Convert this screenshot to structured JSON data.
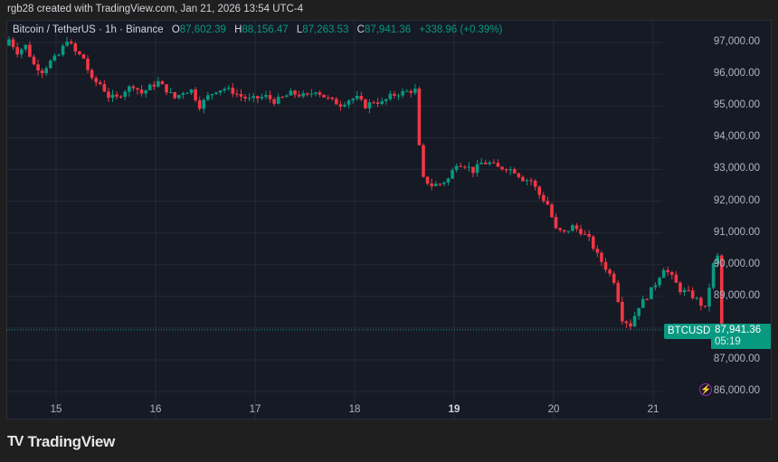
{
  "credit": "rgb28 created with TradingView.com, Jan 21, 2026 13:54 UTC-4",
  "legend": {
    "symbol": "Bitcoin / TetherUS · 1h · Binance",
    "open_label": "O",
    "open": "87,602.39",
    "high_label": "H",
    "high": "88,156.47",
    "low_label": "L",
    "low": "87,263.53",
    "close_label": "C",
    "close": "87,941.36",
    "change": "+338.96 (+0.39%)"
  },
  "price_tag": {
    "symbol": "BTCUSDT",
    "price": "87,941.36",
    "countdown": "05:19"
  },
  "branding": {
    "logo_mark": "TV",
    "logo_text": "TradingView"
  },
  "colors": {
    "up": "#089981",
    "down": "#f23645",
    "background": "#161a25",
    "grid": "#242935",
    "page": "#1f1f1f"
  },
  "chart_data": {
    "type": "candlestick",
    "title": "Bitcoin / TetherUS · 1h · Binance",
    "interval": "1h",
    "yaxis_ticks": [
      "97,000.00",
      "96,000.00",
      "95,000.00",
      "94,000.00",
      "93,000.00",
      "92,000.00",
      "91,000.00",
      "90,000.00",
      "89,000.00",
      "88,000.00",
      "87,000.00",
      "86,000.00"
    ],
    "ylim": [
      85800,
      97600
    ],
    "xaxis_ticks": [
      "15",
      "16",
      "17",
      "18",
      "19",
      "20",
      "21"
    ],
    "last_price": 87941.36,
    "anchors_close": [
      [
        0,
        97100
      ],
      [
        2,
        96700
      ],
      [
        4,
        96900
      ],
      [
        6,
        96300
      ],
      [
        8,
        96100
      ],
      [
        10,
        96400
      ],
      [
        12,
        96600
      ],
      [
        14,
        97100
      ],
      [
        16,
        96700
      ],
      [
        18,
        96500
      ],
      [
        20,
        95800
      ],
      [
        22,
        95700
      ],
      [
        24,
        95300
      ],
      [
        26,
        95250
      ],
      [
        28,
        95500
      ],
      [
        30,
        95650
      ],
      [
        32,
        95400
      ],
      [
        34,
        95600
      ],
      [
        36,
        95750
      ],
      [
        38,
        95500
      ],
      [
        40,
        95250
      ],
      [
        42,
        95450
      ],
      [
        44,
        95500
      ],
      [
        46,
        95000
      ],
      [
        48,
        95300
      ],
      [
        50,
        95500
      ],
      [
        52,
        95550
      ],
      [
        54,
        95450
      ],
      [
        56,
        95300
      ],
      [
        58,
        95200
      ],
      [
        60,
        95250
      ],
      [
        62,
        95300
      ],
      [
        64,
        95150
      ],
      [
        66,
        95250
      ],
      [
        68,
        95400
      ],
      [
        70,
        95350
      ],
      [
        72,
        95300
      ],
      [
        74,
        95500
      ],
      [
        76,
        95300
      ],
      [
        78,
        95150
      ],
      [
        80,
        95050
      ],
      [
        82,
        95200
      ],
      [
        84,
        95250
      ],
      [
        86,
        95000
      ],
      [
        88,
        95150
      ],
      [
        90,
        95100
      ],
      [
        92,
        95300
      ],
      [
        94,
        95400
      ],
      [
        96,
        95450
      ],
      [
        98,
        95500
      ],
      [
        99,
        93700
      ],
      [
        100,
        92700
      ],
      [
        102,
        92500
      ],
      [
        104,
        92550
      ],
      [
        106,
        92700
      ],
      [
        108,
        93200
      ],
      [
        110,
        93150
      ],
      [
        112,
        92950
      ],
      [
        114,
        93200
      ],
      [
        116,
        93200
      ],
      [
        118,
        93050
      ],
      [
        120,
        93050
      ],
      [
        122,
        92950
      ],
      [
        124,
        92700
      ],
      [
        126,
        92650
      ],
      [
        128,
        92200
      ],
      [
        130,
        91900
      ],
      [
        132,
        91100
      ],
      [
        134,
        91000
      ],
      [
        136,
        91200
      ],
      [
        138,
        91050
      ],
      [
        140,
        90800
      ],
      [
        142,
        90300
      ],
      [
        144,
        89900
      ],
      [
        146,
        89500
      ],
      [
        148,
        88300
      ],
      [
        150,
        88100
      ],
      [
        152,
        88700
      ],
      [
        154,
        89000
      ],
      [
        156,
        89400
      ],
      [
        158,
        89900
      ],
      [
        160,
        89600
      ],
      [
        162,
        89200
      ],
      [
        164,
        89100
      ],
      [
        166,
        88900
      ],
      [
        168,
        88600
      ],
      [
        170,
        90000
      ],
      [
        171,
        90250
      ],
      [
        172,
        87950
      ]
    ]
  }
}
